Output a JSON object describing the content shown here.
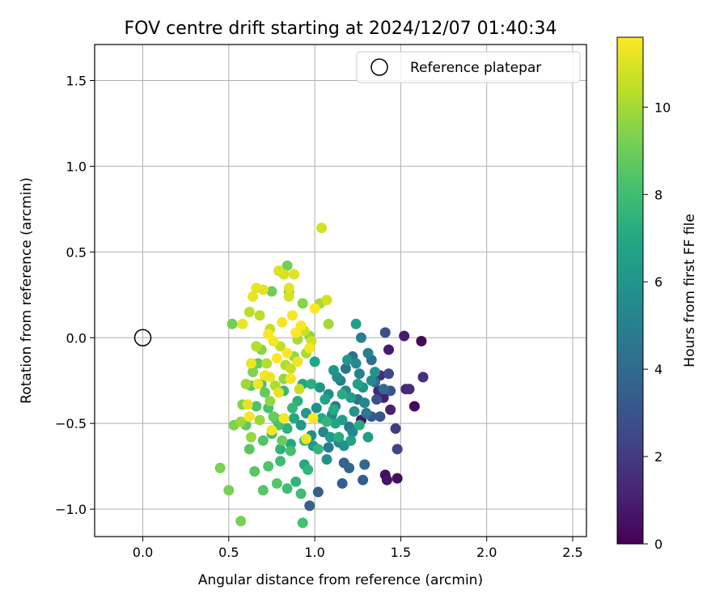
{
  "chart_data": {
    "type": "scatter",
    "title": "FOV centre drift starting at 2024/12/07 01:40:34",
    "xlabel": "Angular distance from reference (arcmin)",
    "ylabel": "Rotation from reference (arcmin)",
    "xlim": [
      -0.28,
      2.58
    ],
    "ylim": [
      -1.16,
      1.71
    ],
    "x_ticks": [
      0.0,
      0.5,
      1.0,
      1.5,
      2.0,
      2.5
    ],
    "x_tick_labels": [
      "0.0",
      "0.5",
      "1.0",
      "1.5",
      "2.0",
      "2.5"
    ],
    "y_ticks": [
      -1.0,
      -0.5,
      0.0,
      0.5,
      1.0,
      1.5
    ],
    "y_tick_labels": [
      "−1.0",
      "−0.5",
      "0.0",
      "0.5",
      "1.0",
      "1.5"
    ],
    "grid": true,
    "legend": {
      "position": "top-right",
      "entries": [
        {
          "label": "Reference platepar",
          "marker": "open-circle"
        }
      ]
    },
    "reference_point": {
      "x": 0.0,
      "y": 0.0
    },
    "colorbar": {
      "label": "Hours from first FF file",
      "range": [
        0,
        11.6
      ],
      "ticks": [
        0,
        2,
        4,
        6,
        8,
        10
      ],
      "tick_labels": [
        "0",
        "2",
        "4",
        "6",
        "8",
        "10"
      ],
      "colormap": "viridis"
    },
    "colors": {
      "grid": "#b0b0b0",
      "reference_marker": "#000000"
    },
    "points": [
      [
        1.62,
        -0.02,
        0.2
      ],
      [
        1.58,
        -0.4,
        0.3
      ],
      [
        1.48,
        -0.82,
        0.4
      ],
      [
        1.41,
        -0.8,
        0.5
      ],
      [
        1.42,
        -0.83,
        0.6
      ],
      [
        1.27,
        -0.48,
        0.7
      ],
      [
        1.43,
        -0.07,
        0.8
      ],
      [
        1.52,
        0.01,
        0.9
      ],
      [
        1.4,
        -0.35,
        1.0
      ],
      [
        1.44,
        -0.42,
        1.1
      ],
      [
        1.37,
        -0.31,
        1.2
      ],
      [
        1.53,
        -0.3,
        1.3
      ],
      [
        1.55,
        -0.3,
        1.4
      ],
      [
        1.38,
        -0.22,
        1.5
      ],
      [
        1.63,
        -0.23,
        1.6
      ],
      [
        1.47,
        -0.53,
        2.0
      ],
      [
        1.48,
        -0.65,
        2.3
      ],
      [
        1.43,
        -0.21,
        2.5
      ],
      [
        1.41,
        0.03,
        2.8
      ],
      [
        1.36,
        -0.36,
        2.9
      ],
      [
        1.44,
        -0.31,
        3.0
      ],
      [
        1.38,
        -0.46,
        3.1
      ],
      [
        1.33,
        -0.46,
        3.2
      ],
      [
        1.28,
        -0.83,
        3.3
      ],
      [
        1.16,
        -0.85,
        3.4
      ],
      [
        1.02,
        -0.9,
        3.5
      ],
      [
        0.97,
        -0.98,
        3.6
      ],
      [
        1.17,
        -0.73,
        3.7
      ],
      [
        1.2,
        -0.76,
        3.8
      ],
      [
        1.29,
        -0.74,
        3.9
      ],
      [
        1.4,
        -0.3,
        4.0
      ],
      [
        1.35,
        -0.26,
        4.1
      ],
      [
        1.33,
        -0.13,
        4.2
      ],
      [
        1.22,
        -0.11,
        4.3
      ],
      [
        1.18,
        -0.18,
        4.4
      ],
      [
        1.25,
        -0.36,
        4.5
      ],
      [
        1.3,
        -0.44,
        4.6
      ],
      [
        1.2,
        -0.52,
        4.7
      ],
      [
        1.08,
        -0.64,
        4.8
      ],
      [
        1.12,
        -0.4,
        4.9
      ],
      [
        1.15,
        -0.25,
        5.0
      ],
      [
        1.27,
        0.0,
        5.0
      ],
      [
        1.31,
        -0.09,
        5.1
      ],
      [
        1.26,
        -0.21,
        5.1
      ],
      [
        1.18,
        -0.31,
        5.2
      ],
      [
        1.1,
        -0.45,
        5.2
      ],
      [
        1.05,
        -0.55,
        5.3
      ],
      [
        1.14,
        -0.61,
        5.3
      ],
      [
        1.22,
        -0.55,
        5.4
      ],
      [
        1.29,
        -0.38,
        5.4
      ],
      [
        1.33,
        -0.25,
        5.5
      ],
      [
        1.24,
        -0.15,
        5.5
      ],
      [
        1.13,
        -0.23,
        5.6
      ],
      [
        1.08,
        -0.33,
        5.6
      ],
      [
        1.01,
        -0.41,
        5.7
      ],
      [
        0.98,
        -0.57,
        5.7
      ],
      [
        1.07,
        -0.71,
        5.8
      ],
      [
        1.17,
        -0.63,
        5.8
      ],
      [
        1.23,
        -0.43,
        5.9
      ],
      [
        1.28,
        -0.29,
        5.9
      ],
      [
        1.35,
        -0.2,
        6.0
      ],
      [
        1.19,
        -0.13,
        6.0
      ],
      [
        1.11,
        -0.19,
        6.1
      ],
      [
        1.03,
        -0.29,
        6.1
      ],
      [
        0.95,
        -0.44,
        6.2
      ],
      [
        0.92,
        -0.51,
        6.2
      ],
      [
        0.99,
        -0.63,
        6.3
      ],
      [
        1.09,
        -0.58,
        6.3
      ],
      [
        1.16,
        -0.48,
        6.4
      ],
      [
        1.21,
        -0.35,
        6.4
      ],
      [
        1.25,
        -0.27,
        6.5
      ],
      [
        1.31,
        -0.58,
        6.5
      ],
      [
        1.24,
        0.08,
        6.6
      ],
      [
        1.21,
        -0.6,
        6.6
      ],
      [
        1.12,
        -0.5,
        6.7
      ],
      [
        1.06,
        -0.36,
        6.7
      ],
      [
        1.0,
        -0.14,
        6.8
      ],
      [
        0.93,
        -0.27,
        6.8
      ],
      [
        0.88,
        -0.47,
        6.9
      ],
      [
        0.86,
        -0.62,
        6.9
      ],
      [
        0.94,
        -0.74,
        7.0
      ],
      [
        1.04,
        -0.47,
        7.0
      ],
      [
        1.11,
        -0.42,
        7.1
      ],
      [
        1.16,
        -0.33,
        7.1
      ],
      [
        1.14,
        -0.58,
        7.2
      ],
      [
        1.26,
        -0.51,
        7.2
      ],
      [
        0.98,
        -0.27,
        7.3
      ],
      [
        0.9,
        -0.37,
        7.3
      ],
      [
        0.84,
        -0.53,
        7.4
      ],
      [
        0.8,
        -0.65,
        7.4
      ],
      [
        0.89,
        -0.84,
        7.5
      ],
      [
        0.96,
        -0.77,
        7.5
      ],
      [
        1.02,
        -0.65,
        7.6
      ],
      [
        1.07,
        -0.49,
        7.6
      ],
      [
        0.94,
        -0.6,
        7.7
      ],
      [
        0.87,
        -0.41,
        7.7
      ],
      [
        0.82,
        -0.31,
        7.8
      ],
      [
        0.77,
        -0.47,
        7.8
      ],
      [
        0.75,
        -0.56,
        7.9
      ],
      [
        0.8,
        -0.72,
        7.9
      ],
      [
        0.84,
        -0.88,
        8.0
      ],
      [
        0.92,
        -0.91,
        8.0
      ],
      [
        0.93,
        -1.08,
        8.1
      ],
      [
        0.86,
        -0.66,
        8.1
      ],
      [
        0.79,
        -0.51,
        8.2
      ],
      [
        0.73,
        -0.41,
        8.2
      ],
      [
        0.69,
        -0.27,
        8.3
      ],
      [
        0.66,
        -0.4,
        8.3
      ],
      [
        0.7,
        -0.6,
        8.4
      ],
      [
        0.73,
        -0.75,
        8.4
      ],
      [
        0.78,
        -0.85,
        8.5
      ],
      [
        0.7,
        -0.89,
        8.5
      ],
      [
        0.65,
        -0.78,
        8.6
      ],
      [
        0.62,
        -0.65,
        8.6
      ],
      [
        0.6,
        -0.51,
        8.7
      ],
      [
        0.63,
        -0.28,
        8.7
      ],
      [
        0.67,
        -0.15,
        8.8
      ],
      [
        0.71,
        -0.32,
        8.8
      ],
      [
        0.76,
        -0.46,
        8.9
      ],
      [
        0.81,
        -0.6,
        8.9
      ],
      [
        0.85,
        0.27,
        9.0
      ],
      [
        0.75,
        0.27,
        9.0
      ],
      [
        0.84,
        0.42,
        9.1
      ],
      [
        0.52,
        0.08,
        9.1
      ],
      [
        0.57,
        -1.07,
        9.2
      ],
      [
        0.5,
        -0.89,
        9.2
      ],
      [
        0.45,
        -0.76,
        9.3
      ],
      [
        0.53,
        -0.51,
        9.3
      ],
      [
        0.58,
        -0.39,
        9.4
      ],
      [
        0.64,
        -0.2,
        9.4
      ],
      [
        0.69,
        -0.07,
        9.5
      ],
      [
        0.93,
        0.2,
        9.5
      ],
      [
        0.97,
        0.01,
        9.6
      ],
      [
        0.88,
        -0.11,
        9.6
      ],
      [
        0.82,
        -0.24,
        9.7
      ],
      [
        0.74,
        -0.37,
        9.7
      ],
      [
        0.68,
        -0.48,
        9.8
      ],
      [
        0.63,
        -0.58,
        9.8
      ],
      [
        0.57,
        -0.49,
        9.9
      ],
      [
        0.6,
        -0.27,
        9.9
      ],
      [
        1.08,
        0.08,
        10.0
      ],
      [
        1.03,
        0.2,
        10.0
      ],
      [
        0.95,
        -0.09,
        10.1
      ],
      [
        0.9,
        -0.01,
        10.1
      ],
      [
        0.83,
        -0.16,
        10.2
      ],
      [
        0.77,
        -0.28,
        10.2
      ],
      [
        0.72,
        -0.15,
        10.3
      ],
      [
        0.66,
        -0.05,
        10.3
      ],
      [
        0.62,
        0.15,
        10.4
      ],
      [
        0.68,
        0.13,
        10.4
      ],
      [
        0.74,
        0.05,
        10.5
      ],
      [
        0.8,
        -0.05,
        10.5
      ],
      [
        0.86,
        -0.18,
        10.6
      ],
      [
        0.91,
        -0.3,
        10.6
      ],
      [
        0.94,
        0.04,
        10.7
      ],
      [
        0.98,
        -0.02,
        10.7
      ],
      [
        1.04,
        0.64,
        10.8
      ],
      [
        1.07,
        0.22,
        10.8
      ],
      [
        0.85,
        0.24,
        10.9
      ],
      [
        0.82,
        0.37,
        10.9
      ],
      [
        0.79,
        0.39,
        11.0
      ],
      [
        0.88,
        0.37,
        11.0
      ],
      [
        0.85,
        0.29,
        11.1
      ],
      [
        0.7,
        0.28,
        11.1
      ],
      [
        0.66,
        0.29,
        11.2
      ],
      [
        0.64,
        0.24,
        11.2
      ],
      [
        0.58,
        0.08,
        11.3
      ],
      [
        0.63,
        -0.15,
        11.3
      ],
      [
        0.67,
        -0.27,
        11.4
      ],
      [
        0.71,
        -0.22,
        11.4
      ],
      [
        0.76,
        -0.02,
        11.4
      ],
      [
        0.81,
        0.09,
        11.5
      ],
      [
        0.87,
        0.13,
        11.5
      ],
      [
        0.92,
        0.07,
        11.5
      ],
      [
        0.97,
        -0.06,
        11.5
      ],
      [
        1.0,
        0.17,
        11.6
      ],
      [
        0.89,
        0.03,
        11.6
      ],
      [
        0.84,
        -0.09,
        11.6
      ],
      [
        0.78,
        -0.12,
        11.6
      ],
      [
        0.73,
        0.02,
        11.6
      ],
      [
        0.62,
        -0.46,
        11.5
      ],
      [
        0.75,
        -0.54,
        11.4
      ],
      [
        0.82,
        -0.47,
        11.5
      ],
      [
        0.95,
        -0.59,
        11.3
      ],
      [
        0.99,
        -0.47,
        11.6
      ],
      [
        0.61,
        -0.39,
        11.2
      ],
      [
        0.74,
        -0.23,
        11.3
      ],
      [
        0.86,
        -0.24,
        11.4
      ],
      [
        0.9,
        -0.14,
        11.3
      ],
      [
        0.79,
        -0.32,
        11.2
      ]
    ]
  }
}
